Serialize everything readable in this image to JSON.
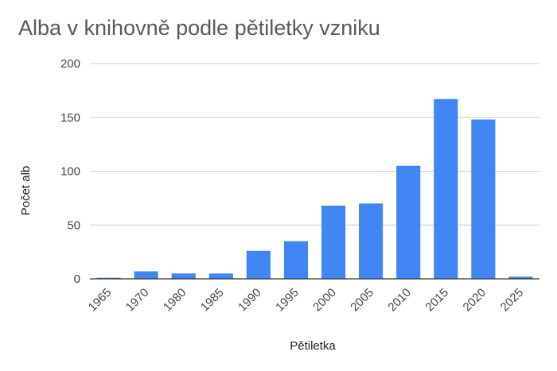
{
  "chart_data": {
    "type": "bar",
    "title": "Alba v knihovně podle pětiletky vzniku",
    "xlabel": "Pětiletka",
    "ylabel": "Počet alb",
    "categories": [
      "1965",
      "1970",
      "1980",
      "1985",
      "1990",
      "1995",
      "2000",
      "2005",
      "2010",
      "2015",
      "2020",
      "2025"
    ],
    "values": [
      1,
      7,
      5,
      5,
      26,
      35,
      68,
      70,
      105,
      167,
      148,
      2
    ],
    "ylim": [
      0,
      200
    ],
    "yticks": [
      0,
      50,
      100,
      150,
      200
    ],
    "grid": true,
    "bar_color": "#4285f4",
    "gridline_color": "#cccccc",
    "baseline_color": "#333333"
  }
}
